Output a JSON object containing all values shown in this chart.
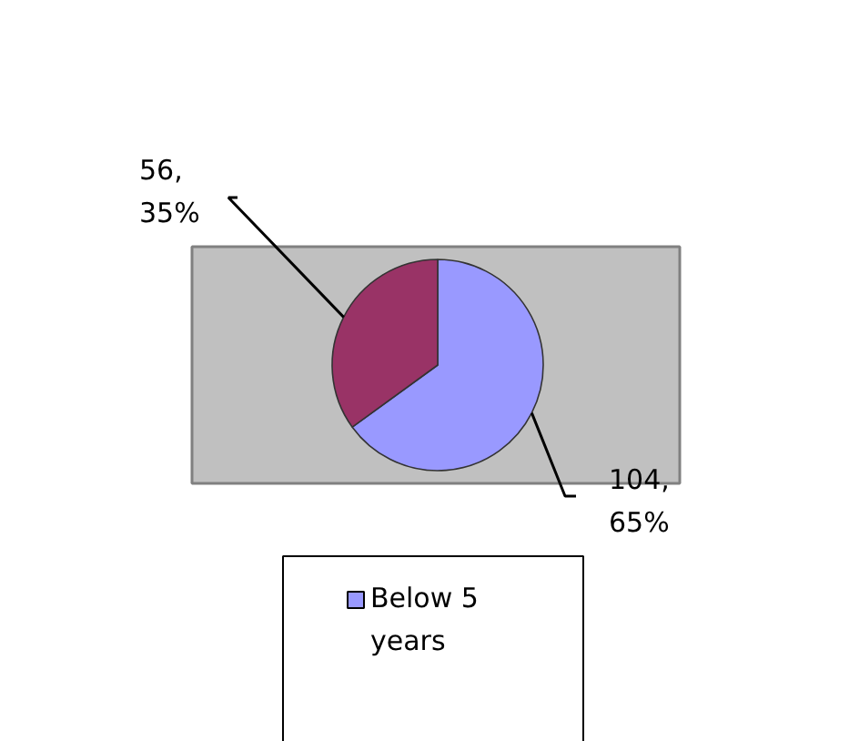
{
  "chart_data": {
    "type": "pie",
    "categories": [
      "Below 5 years",
      null
    ],
    "values": [
      104,
      56
    ],
    "colors": [
      "#9999ff",
      "#993366"
    ],
    "value_labels": [
      "104, 65%",
      "56, 35%"
    ],
    "legend": "bottom"
  }
}
